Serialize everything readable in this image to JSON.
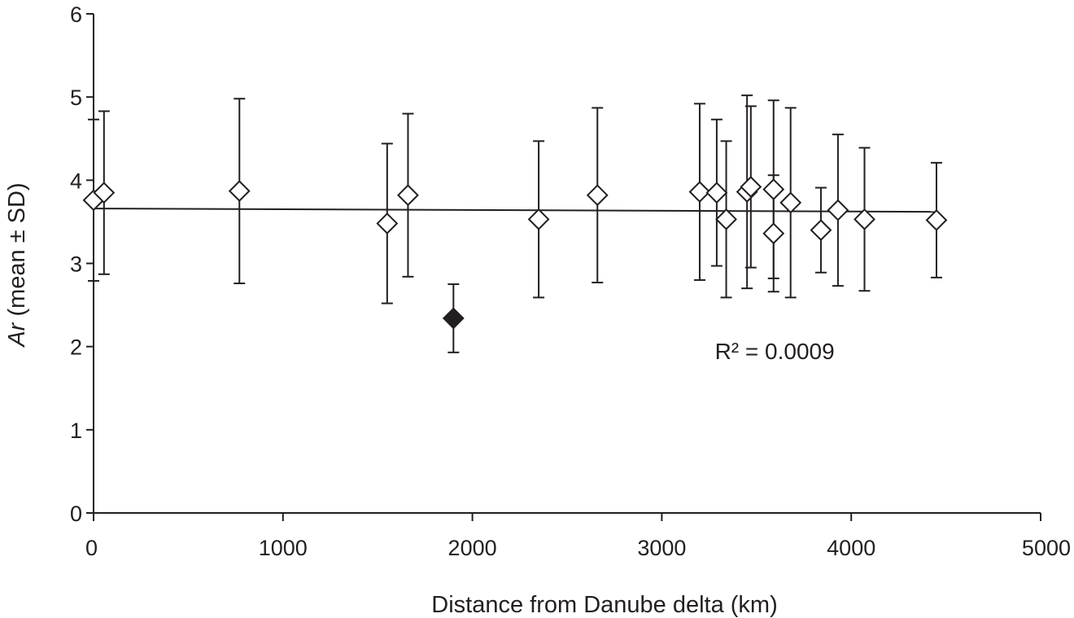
{
  "chart_data": {
    "type": "scatter",
    "title": "",
    "xlabel": "Distance from Danube delta (km)",
    "ylabel_italic": "Ar",
    "ylabel_rest": " (mean ± SD)",
    "xlim": [
      0,
      5000
    ],
    "ylim": [
      0,
      6
    ],
    "x_ticks": [
      0,
      1000,
      2000,
      3000,
      4000,
      5000
    ],
    "y_ticks": [
      0,
      1,
      2,
      3,
      4,
      5,
      6
    ],
    "x_tick_labels": [
      "0",
      "1000",
      "2000",
      "3000",
      "4000",
      "5000"
    ],
    "y_tick_labels": [
      "0",
      "1",
      "2",
      "3",
      "4",
      "5",
      "6"
    ],
    "grid": false,
    "legend": "none",
    "series": [
      {
        "marker": "open-diamond",
        "points": [
          {
            "x": 0,
            "y": 3.76,
            "sd": 0.97
          },
          {
            "x": 55,
            "y": 3.85,
            "sd": 0.98
          },
          {
            "x": 770,
            "y": 3.87,
            "sd": 1.11
          },
          {
            "x": 1550,
            "y": 3.48,
            "sd": 0.96
          },
          {
            "x": 1660,
            "y": 3.82,
            "sd": 0.98
          },
          {
            "x": 2350,
            "y": 3.53,
            "sd": 0.94
          },
          {
            "x": 2660,
            "y": 3.82,
            "sd": 1.05
          },
          {
            "x": 3200,
            "y": 3.86,
            "sd": 1.06
          },
          {
            "x": 3290,
            "y": 3.85,
            "sd": 0.88
          },
          {
            "x": 3340,
            "y": 3.53,
            "sd": 0.94
          },
          {
            "x": 3450,
            "y": 3.86,
            "sd": 1.16
          },
          {
            "x": 3470,
            "y": 3.92,
            "sd": 0.97
          },
          {
            "x": 3590,
            "y": 3.89,
            "sd": 1.07
          },
          {
            "x": 3590,
            "y": 3.36,
            "sd": 0.7
          },
          {
            "x": 3680,
            "y": 3.73,
            "sd": 1.14
          },
          {
            "x": 3840,
            "y": 3.4,
            "sd": 0.51
          },
          {
            "x": 3930,
            "y": 3.64,
            "sd": 0.91
          },
          {
            "x": 4070,
            "y": 3.53,
            "sd": 0.86
          },
          {
            "x": 4450,
            "y": 3.52,
            "sd": 0.69
          }
        ]
      },
      {
        "marker": "filled-diamond",
        "points": [
          {
            "x": 1900,
            "y": 2.34,
            "sd": 0.41
          }
        ]
      }
    ],
    "trendline": {
      "x": [
        0,
        4450
      ],
      "y": [
        3.66,
        3.62
      ]
    },
    "annotation": "R² = 0.0009",
    "annotation_pos": {
      "x": 3280,
      "y": 1.85
    }
  }
}
